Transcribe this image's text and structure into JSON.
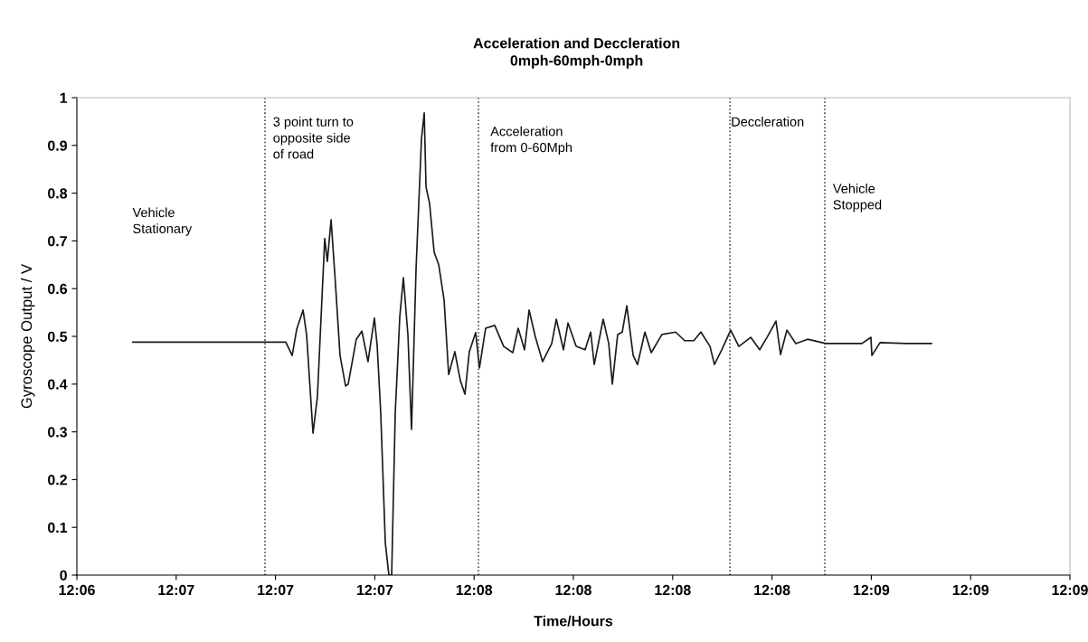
{
  "chart_data": {
    "type": "line",
    "title": "Acceleration and Deccleration",
    "subtitle": "0mph-60mph-0mph",
    "xlabel": "Time/Hours",
    "ylabel": "Gyroscope Output / V",
    "series": [
      {
        "color": "#1a1a1a",
        "x": [
          12.10842,
          12.11084,
          12.11311,
          12.11448,
          12.11612,
          12.11644,
          12.11667,
          12.11699,
          12.11717,
          12.11749,
          12.11771,
          12.11808,
          12.11821,
          12.1184,
          12.11862,
          12.11885,
          12.11913,
          12.11926,
          12.11967,
          12.11995,
          12.12026,
          12.12058,
          12.12072,
          12.1209,
          12.12113,
          12.12131,
          12.12145,
          12.12163,
          12.12186,
          12.12204,
          12.12227,
          12.12245,
          12.12268,
          12.12295,
          12.12309,
          12.12318,
          12.12336,
          12.12359,
          12.12382,
          12.12409,
          12.12432,
          12.12463,
          12.12491,
          12.12514,
          12.12536,
          12.12568,
          12.12587,
          12.12618,
          12.12664,
          12.12709,
          12.12755,
          12.12782,
          12.12814,
          12.12837,
          12.12869,
          12.12905,
          12.12951,
          12.12974,
          12.1301,
          12.13033,
          12.13074,
          12.13119,
          12.13147,
          12.13165,
          12.1321,
          12.13238,
          12.13256,
          12.13283,
          12.13306,
          12.13329,
          12.13361,
          12.13383,
          12.1342,
          12.13452,
          12.13506,
          12.13575,
          12.1362,
          12.13666,
          12.13702,
          12.13748,
          12.1377,
          12.13807,
          12.13852,
          12.13893,
          12.13953,
          12.13998,
          12.14035,
          12.1408,
          12.14103,
          12.14135,
          12.1418,
          12.14239,
          12.14331,
          12.1444,
          12.14513,
          12.14558,
          12.14563,
          12.14604,
          12.1474,
          12.14863
        ],
        "values": [
          0.488,
          0.488,
          0.488,
          0.488,
          0.488,
          0.46,
          0.515,
          0.555,
          0.502,
          0.297,
          0.373,
          0.705,
          0.657,
          0.744,
          0.61,
          0.46,
          0.396,
          0.4,
          0.494,
          0.511,
          0.447,
          0.538,
          0.481,
          0.339,
          0.068,
          0,
          0,
          0.339,
          0.542,
          0.623,
          0.502,
          0.305,
          0.644,
          0.913,
          0.968,
          0.813,
          0.778,
          0.676,
          0.65,
          0.576,
          0.42,
          0.468,
          0.407,
          0.379,
          0.468,
          0.508,
          0.434,
          0.517,
          0.523,
          0.479,
          0.466,
          0.517,
          0.472,
          0.555,
          0.498,
          0.447,
          0.485,
          0.536,
          0.472,
          0.528,
          0.479,
          0.472,
          0.509,
          0.441,
          0.536,
          0.485,
          0.4,
          0.504,
          0.509,
          0.564,
          0.46,
          0.441,
          0.509,
          0.466,
          0.504,
          0.509,
          0.491,
          0.491,
          0.509,
          0.479,
          0.441,
          0.472,
          0.513,
          0.479,
          0.498,
          0.472,
          0.498,
          0.532,
          0.462,
          0.513,
          0.485,
          0.494,
          0.485,
          0.485,
          0.485,
          0.498,
          0.46,
          0.487,
          0.485,
          0.485
        ]
      }
    ],
    "xlim": [
      12.1056,
      12.1556
    ],
    "xticks": [
      {
        "value": 12.1056,
        "label": "12:06"
      },
      {
        "value": 12.1106,
        "label": "12:07"
      },
      {
        "value": 12.1156,
        "label": "12:07"
      },
      {
        "value": 12.1206,
        "label": "12:07"
      },
      {
        "value": 12.1256,
        "label": "12:08"
      },
      {
        "value": 12.1306,
        "label": "12:08"
      },
      {
        "value": 12.1356,
        "label": "12:08"
      },
      {
        "value": 12.1406,
        "label": "12:08"
      },
      {
        "value": 12.1456,
        "label": "12:09"
      },
      {
        "value": 12.1506,
        "label": "12:09"
      },
      {
        "value": 12.1556,
        "label": "12:09"
      }
    ],
    "ylim": [
      0,
      1
    ],
    "yticks": [
      0,
      0.1,
      0.2,
      0.3,
      0.4,
      0.5,
      0.6,
      0.7,
      0.8,
      0.9,
      1
    ],
    "ref_lines": [
      {
        "axis": "x",
        "value": 12.11507,
        "color": "#333333",
        "line_style": "dotted"
      },
      {
        "axis": "x",
        "value": 12.12582,
        "color": "#333333",
        "line_style": "dotted"
      },
      {
        "axis": "x",
        "value": 12.13848,
        "color": "#333333",
        "line_style": "dotted"
      },
      {
        "axis": "x",
        "value": 12.14326,
        "color": "#333333",
        "line_style": "dotted"
      }
    ],
    "annotations": [
      "Vehicle\nStationary",
      "3 point turn to\nopposite side\nof road",
      "Acceleration\nfrom 0-60Mph",
      "Deccleration",
      "Vehicle\nStopped"
    ],
    "grid": false,
    "legend": false,
    "marker": "none",
    "line_style": "solid"
  }
}
